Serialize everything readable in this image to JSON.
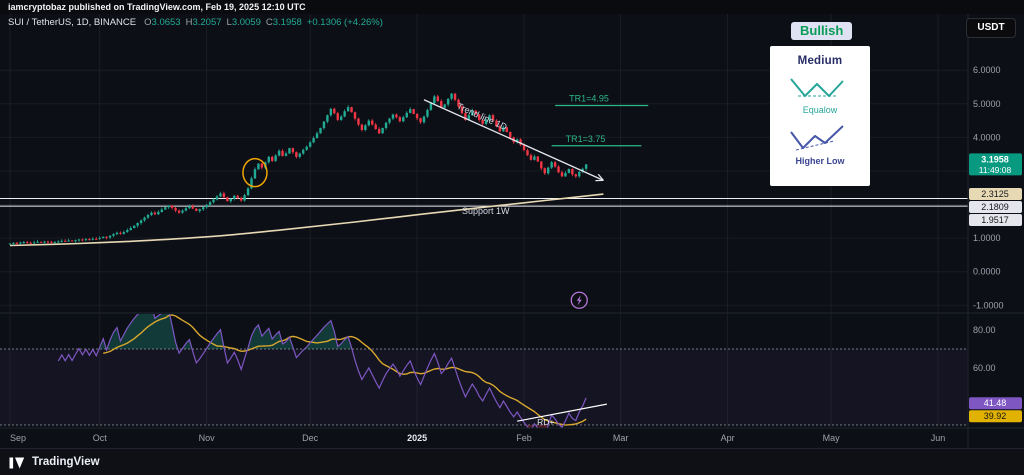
{
  "header": {
    "published_line": "iamcryptobaz published on TradingView.com, Feb 19, 2025 12:10 UTC"
  },
  "legend": {
    "symbol": "SUI / TetherUS, 1D, BINANCE",
    "o_label": "O",
    "open": "3.0653",
    "h_label": "H",
    "high": "3.2057",
    "l_label": "L",
    "low": "3.0059",
    "c_label": "C",
    "close": "3.1958",
    "change": "+0.1306 (+4.26%)"
  },
  "toolbar": {
    "currency": "USDT"
  },
  "signal_card": {
    "sentiment": "Bullish",
    "strength": "Medium",
    "pattern_equal": "Equalow",
    "pattern_higher": "Higher Low"
  },
  "footer": {
    "brand": "TradingView"
  },
  "price_axis": {
    "ticks": [
      {
        "text": "6.0000",
        "value": 6
      },
      {
        "text": "5.0000",
        "value": 5
      },
      {
        "text": "4.0000",
        "value": 4
      },
      {
        "text": "1.0000",
        "value": 1
      },
      {
        "text": "0.0000",
        "value": 0
      },
      {
        "text": "-1.0000",
        "value": -1
      }
    ],
    "last": {
      "price_text": "3.1958",
      "countdown": "11:49:08",
      "value": 3.1958
    },
    "levels": [
      {
        "text": "2.3125",
        "value": 2.3125,
        "bg": "#e7d9b4"
      },
      {
        "text": "2.1809",
        "value": 2.1809,
        "bg": "#e4e6eb"
      },
      {
        "text": "1.9517",
        "value": 1.9517,
        "bg": "#e4e6eb"
      }
    ]
  },
  "indicator_axis": {
    "ticks": [
      {
        "text": "80.00",
        "value": 80
      },
      {
        "text": "60.00",
        "value": 60
      },
      {
        "text": "40.00",
        "value": 40
      }
    ],
    "badges": [
      {
        "text": "41.48",
        "value": 41.48,
        "bg": "#7e57c2",
        "fg": "#ffffff"
      },
      {
        "text": "39.92",
        "value": 39.92,
        "bg": "#e2b203",
        "fg": "#141414"
      }
    ]
  },
  "time_axis": {
    "labels": [
      {
        "text": "Sep",
        "i": 0
      },
      {
        "text": "Oct",
        "i": 26
      },
      {
        "text": "Nov",
        "i": 57
      },
      {
        "text": "Dec",
        "i": 87
      },
      {
        "text": "2025",
        "i": 118,
        "bold": true
      },
      {
        "text": "Feb",
        "i": 149
      },
      {
        "text": "Mar",
        "i": 177
      },
      {
        "text": "Apr",
        "i": 208
      },
      {
        "text": "May",
        "i": 238
      },
      {
        "text": "Jun",
        "i": 269
      }
    ]
  },
  "chart_data": {
    "type": "candlestick",
    "symbol": "SUI/TetherUS",
    "interval": "1D",
    "exchange": "BINANCE",
    "visible_price_range": [
      -1.0,
      6.0
    ],
    "first_open": 0.83,
    "closes": [
      0.84,
      0.86,
      0.85,
      0.87,
      0.88,
      0.86,
      0.85,
      0.87,
      0.89,
      0.88,
      0.9,
      0.89,
      0.87,
      0.88,
      0.9,
      0.92,
      0.91,
      0.93,
      0.92,
      0.94,
      0.96,
      0.95,
      0.97,
      0.96,
      0.98,
      0.97,
      1.0,
      1.04,
      1.02,
      1.07,
      1.12,
      1.16,
      1.13,
      1.18,
      1.24,
      1.3,
      1.37,
      1.45,
      1.53,
      1.61,
      1.69,
      1.76,
      1.71,
      1.78,
      1.85,
      1.92,
      1.97,
      1.9,
      1.82,
      1.76,
      1.82,
      1.89,
      1.95,
      1.88,
      1.81,
      1.86,
      1.92,
      1.99,
      2.07,
      2.15,
      2.24,
      2.33,
      2.22,
      2.1,
      2.17,
      2.26,
      2.2,
      2.12,
      2.28,
      2.48,
      2.78,
      3.05,
      3.22,
      3.1,
      3.26,
      3.42,
      3.3,
      3.46,
      3.6,
      3.45,
      3.52,
      3.68,
      3.56,
      3.42,
      3.52,
      3.63,
      3.72,
      3.85,
      3.98,
      4.12,
      4.28,
      4.47,
      4.66,
      4.85,
      4.72,
      4.52,
      4.62,
      4.78,
      4.9,
      4.75,
      4.56,
      4.38,
      4.22,
      4.36,
      4.5,
      4.38,
      4.25,
      4.12,
      4.28,
      4.44,
      4.56,
      4.68,
      4.6,
      4.48,
      4.6,
      4.73,
      4.84,
      4.7,
      4.57,
      4.45,
      4.62,
      4.82,
      5.02,
      5.22,
      5.08,
      4.88,
      4.98,
      5.15,
      5.3,
      5.12,
      4.92,
      4.72,
      4.52,
      4.66,
      4.8,
      4.68,
      4.52,
      4.4,
      4.53,
      4.66,
      4.5,
      4.33,
      4.18,
      4.3,
      4.16,
      4.0,
      3.86,
      3.94,
      3.78,
      3.62,
      3.47,
      3.33,
      3.43,
      3.28,
      3.08,
      2.93,
      3.1,
      3.26,
      3.13,
      2.96,
      2.84,
      2.94,
      3.06,
      2.9,
      2.84,
      2.97,
      3.065,
      3.196
    ],
    "last_candle": {
      "open": 3.0653,
      "high": 3.2057,
      "low": 3.0059,
      "close": 3.1958
    },
    "indicator": {
      "type": "rsi",
      "period": 14,
      "ma_period": 14,
      "overbought": 70,
      "oversold": 30,
      "last_value": 41.48,
      "last_ma": 39.92
    },
    "annotations": {
      "trend_line": {
        "label": "Trend line 1D",
        "from": {
          "i": 120,
          "price": 5.12
        },
        "to": {
          "i": 172,
          "price": 2.72
        }
      },
      "targets": [
        {
          "label": "TR1=4.95",
          "price": 4.95,
          "from_i": 158,
          "to_i": 185
        },
        {
          "label": "TR1=3.75",
          "price": 3.75,
          "from_i": 157,
          "to_i": 183
        }
      ],
      "support": {
        "label": "Support 1W",
        "prices": [
          2.1809,
          1.9517
        ],
        "label_i": 131,
        "label_price": 1.72
      },
      "weekly_ma": {
        "points": [
          [
            0,
            0.78
          ],
          [
            20,
            0.84
          ],
          [
            40,
            0.93
          ],
          [
            60,
            1.06
          ],
          [
            80,
            1.26
          ],
          [
            100,
            1.48
          ],
          [
            120,
            1.72
          ],
          [
            140,
            1.95
          ],
          [
            155,
            2.12
          ],
          [
            172,
            2.3125
          ]
        ]
      },
      "highlight_circle": {
        "i": 71,
        "price": 2.95,
        "rx": 12,
        "ry": 14
      },
      "lightning": {
        "i": 165,
        "price": -0.85
      },
      "rsi_divergence": {
        "label": "RD+",
        "from": {
          "i": 147,
          "v": 32
        },
        "to": {
          "i": 173,
          "v": 41
        }
      }
    },
    "colors": {
      "up": "#22ab94",
      "down": "#f23645",
      "rsi_line": "#7e57c2",
      "rsi_ma": "#d9a82f",
      "weekly_ma": "#e7d9b4",
      "trend": "#e3e6ee",
      "support": "#eef1f7",
      "target": "#2cb886",
      "highlight": "#f0a500",
      "last_price_badge": "#089981",
      "overbought_fill": "rgba(34,171,148,0.28)",
      "oversold_fill": "rgba(242,54,69,0.28)",
      "band_fill": "rgba(126,87,194,0.08)",
      "band_line": "#787b86",
      "divergence": "#ffffff",
      "lightning": "#b477d9"
    }
  }
}
